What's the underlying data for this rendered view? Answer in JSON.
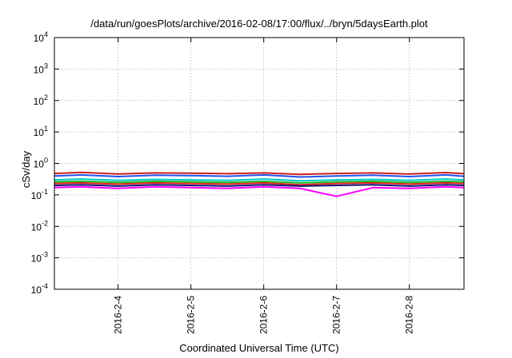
{
  "chart_data": {
    "type": "line",
    "title": "/data/run/goesPlots/archive/2016-02-08/17:00/flux/../bryn/5daysEarth.plot",
    "xlabel": "Coordinated Universal Time (UTC)",
    "ylabel": "cSv/day",
    "y_scale": "log",
    "ylim": [
      0.0001,
      10000
    ],
    "y_ticks": [
      {
        "value": 0.0001,
        "base": "10",
        "exp": "-4"
      },
      {
        "value": 0.001,
        "base": "10",
        "exp": "-3"
      },
      {
        "value": 0.01,
        "base": "10",
        "exp": "-2"
      },
      {
        "value": 0.1,
        "base": "10",
        "exp": "-1"
      },
      {
        "value": 1,
        "base": "10",
        "exp": "0"
      },
      {
        "value": 10,
        "base": "10",
        "exp": "1"
      },
      {
        "value": 100,
        "base": "10",
        "exp": "2"
      },
      {
        "value": 1000,
        "base": "10",
        "exp": "3"
      },
      {
        "value": 10000,
        "base": "10",
        "exp": "4"
      }
    ],
    "xlim": [
      "2016-02-03 03:00",
      "2016-02-08 18:00"
    ],
    "x_ticks": [
      {
        "value": "2016-02-04",
        "label": "2016-2-4"
      },
      {
        "value": "2016-02-05",
        "label": "2016-2-5"
      },
      {
        "value": "2016-02-06",
        "label": "2016-2-6"
      },
      {
        "value": "2016-02-07",
        "label": "2016-2-7"
      },
      {
        "value": "2016-02-08",
        "label": "2016-2-8"
      }
    ],
    "grid": true,
    "x": [
      "2016-02-03 03:00",
      "2016-02-03 12:00",
      "2016-02-04 00:00",
      "2016-02-04 12:00",
      "2016-02-05 00:00",
      "2016-02-05 12:00",
      "2016-02-06 00:00",
      "2016-02-06 12:00",
      "2016-02-07 00:00",
      "2016-02-07 12:00",
      "2016-02-08 00:00",
      "2016-02-08 12:00",
      "2016-02-08 18:00"
    ],
    "series": [
      {
        "color": "#cc1f1f",
        "values": [
          0.48,
          0.52,
          0.46,
          0.5,
          0.49,
          0.47,
          0.5,
          0.45,
          0.48,
          0.5,
          0.46,
          0.51,
          0.47
        ]
      },
      {
        "color": "#2255ee",
        "values": [
          0.4,
          0.43,
          0.38,
          0.42,
          0.41,
          0.39,
          0.43,
          0.37,
          0.4,
          0.42,
          0.38,
          0.43,
          0.39
        ]
      },
      {
        "color": "#00cccc",
        "values": [
          0.3,
          0.32,
          0.29,
          0.31,
          0.3,
          0.29,
          0.32,
          0.28,
          0.3,
          0.31,
          0.29,
          0.32,
          0.3
        ]
      },
      {
        "color": "#22bb22",
        "values": [
          0.26,
          0.27,
          0.25,
          0.27,
          0.26,
          0.25,
          0.27,
          0.24,
          0.26,
          0.27,
          0.25,
          0.27,
          0.26
        ]
      },
      {
        "color": "#dd2222",
        "values": [
          0.23,
          0.24,
          0.22,
          0.24,
          0.23,
          0.22,
          0.24,
          0.21,
          0.23,
          0.24,
          0.22,
          0.24,
          0.23
        ]
      },
      {
        "color": "#111177",
        "values": [
          0.2,
          0.21,
          0.19,
          0.21,
          0.2,
          0.19,
          0.21,
          0.19,
          0.2,
          0.21,
          0.19,
          0.21,
          0.2
        ]
      },
      {
        "color": "#ff00ff",
        "values": [
          0.17,
          0.18,
          0.16,
          0.18,
          0.17,
          0.16,
          0.18,
          0.16,
          0.09,
          0.17,
          0.16,
          0.18,
          0.17
        ]
      }
    ]
  }
}
